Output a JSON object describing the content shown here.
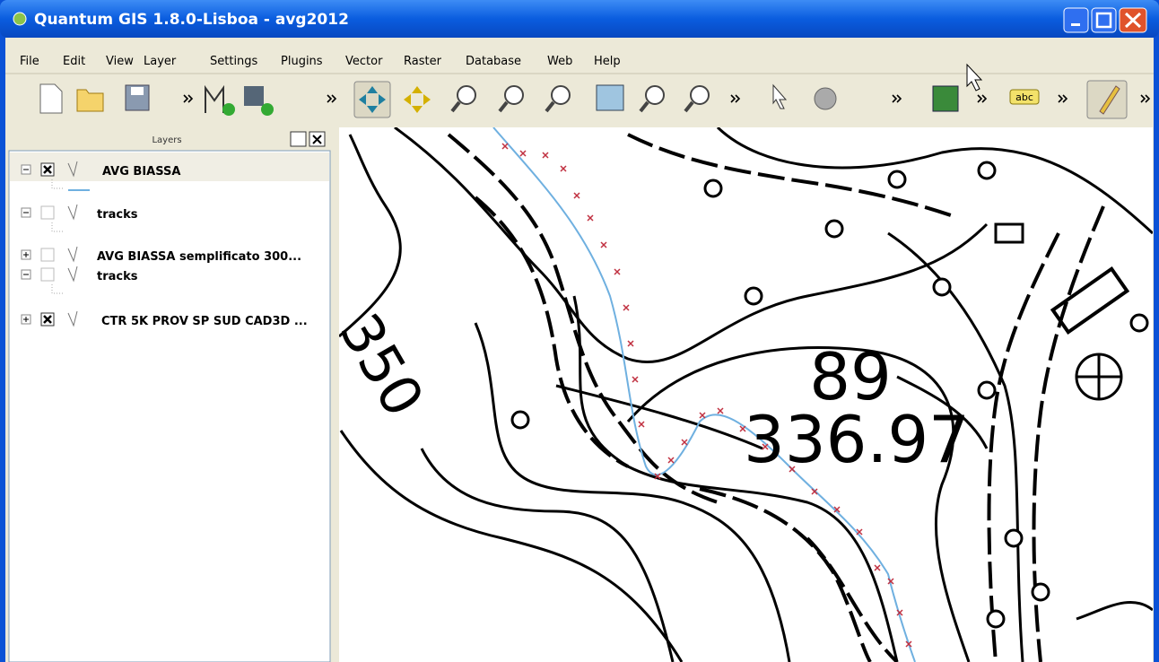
{
  "window": {
    "title": "Quantum GIS 1.8.0-Lisboa - avg2012"
  },
  "menu": [
    "File",
    "Edit",
    "View",
    "Layer",
    "Settings",
    "Plugins",
    "Vector",
    "Raster",
    "Database",
    "Web",
    "Help"
  ],
  "toolbar": {
    "label_icon": "abc"
  },
  "layers_panel": {
    "title": "Layers",
    "layers": [
      "AVG BIASSA",
      "tracks",
      "AVG BIASSA semplificato 300...",
      "tracks",
      "CTR 5K PROV SP SUD CAD3D ..."
    ]
  },
  "map": {
    "labels": [
      "89",
      "336.97",
      "350"
    ]
  }
}
